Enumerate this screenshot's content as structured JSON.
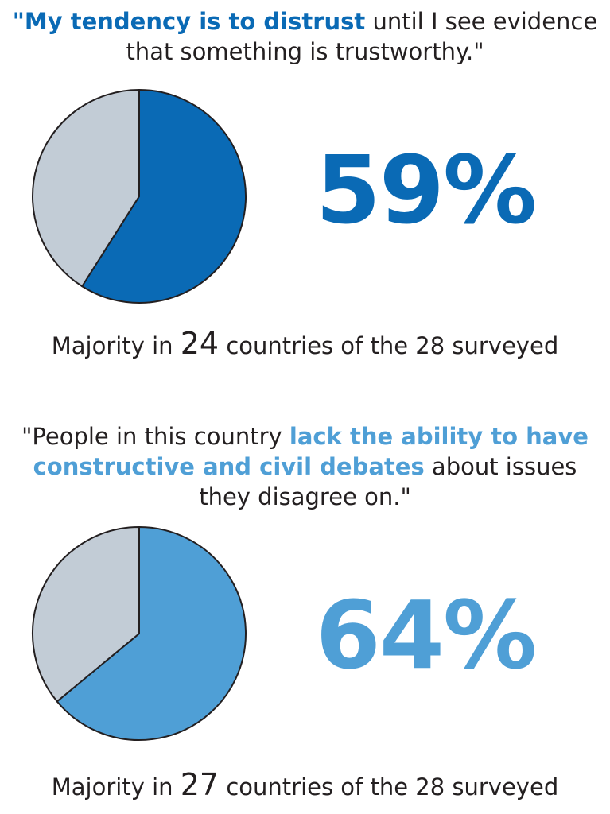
{
  "quote1": {
    "open": "\"",
    "highlight": "My tendency is to distrust",
    "rest": " until I see evidence that something is trustworthy.\""
  },
  "quote2": {
    "lead": "\"People in this country ",
    "highlight": "lack the ability to have constructive and civil debates",
    "rest": " about issues they disagree on.\""
  },
  "stat1": {
    "percent": "59%",
    "majority_prefix": "Majority in ",
    "majority_count": "24",
    "majority_suffix": " countries of the 28 surveyed"
  },
  "stat2": {
    "percent": "64%",
    "majority_prefix": "Majority in ",
    "majority_count": "27",
    "majority_suffix": " countries of the 28 surveyed"
  },
  "colors": {
    "dark_blue": "#0a6ab5",
    "light_blue": "#4f9fd6",
    "gray": "#c2ccd6",
    "text": "#231f20"
  },
  "chart_data": [
    {
      "type": "pie",
      "labels": [
        "59%",
        "41%"
      ],
      "values": [
        59,
        41
      ],
      "colors": [
        "#0a6ab5",
        "#c2ccd6"
      ]
    },
    {
      "type": "pie",
      "labels": [
        "64%",
        "36%"
      ],
      "values": [
        64,
        36
      ],
      "colors": [
        "#4f9fd6",
        "#c2ccd6"
      ]
    }
  ]
}
